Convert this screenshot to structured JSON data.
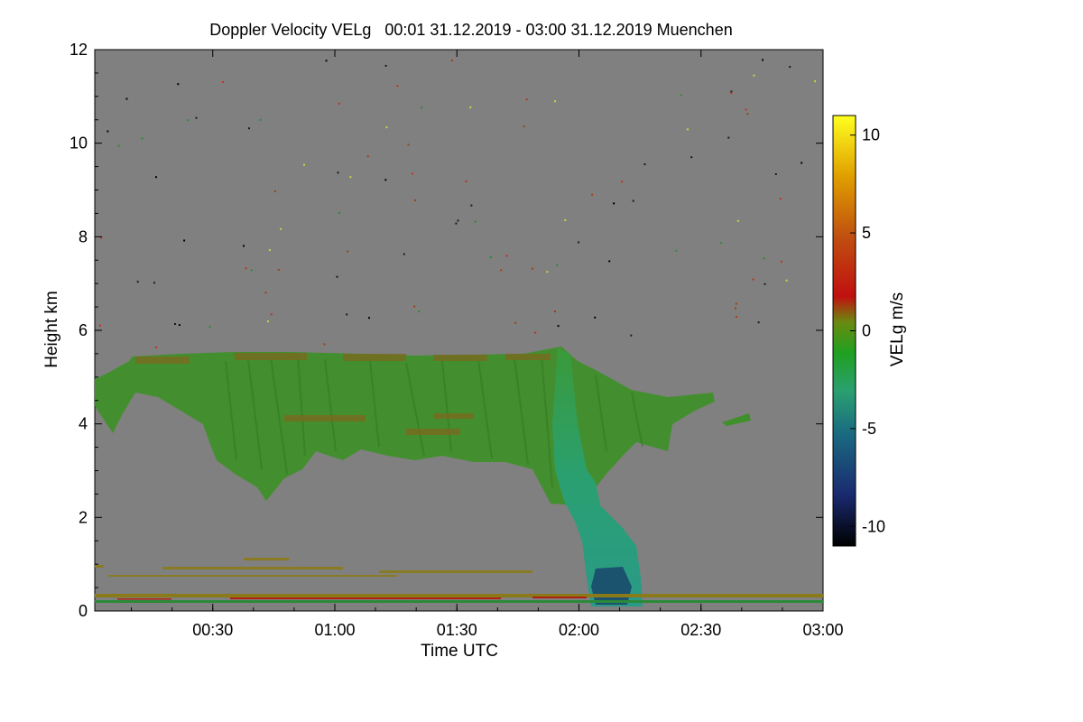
{
  "chart_data": {
    "type": "heatmap",
    "title": "Doppler Velocity VELg   00:01 31.12.2019 - 03:00 31.12.2019 Muenchen",
    "xlabel": "Time UTC",
    "ylabel": "Height km",
    "colorbar_label": "VELg m/s",
    "x_ticks": [
      "00:30",
      "01:00",
      "01:30",
      "02:00",
      "02:30",
      "03:00"
    ],
    "x_tick_hours": [
      0.5,
      1.0,
      1.5,
      2.0,
      2.5,
      3.0
    ],
    "xlim_hours": [
      0.0167,
      3.0
    ],
    "y_ticks": [
      "0",
      "2",
      "4",
      "6",
      "8",
      "10",
      "12"
    ],
    "y_tick_values": [
      0,
      2,
      4,
      6,
      8,
      10,
      12
    ],
    "ylim_km": [
      0,
      12
    ],
    "colorbar_ticks": [
      "10",
      "5",
      "0",
      "-5",
      "-10"
    ],
    "colorbar_tick_values": [
      10,
      5,
      0,
      -5,
      -10
    ],
    "colorbar_range": [
      -11,
      11
    ],
    "features": [
      {
        "name": "mid-level cloud layer",
        "time_start_hours": 0.02,
        "time_end_hours": 2.55,
        "base_km": 2.9,
        "top_km": 5.5,
        "typical_velocity_ms": -1.5
      },
      {
        "name": "precipitation fall streak",
        "time_start_hours": 1.92,
        "time_end_hours": 2.2,
        "base_km": 0.0,
        "top_km": 5.6,
        "typical_velocity_ms": -4.0
      },
      {
        "name": "surface clutter layer",
        "time_start_hours": 0.0,
        "time_end_hours": 3.0,
        "base_km": 0.1,
        "top_km": 0.3,
        "typical_velocity_ms": 1.0
      }
    ],
    "colors": {
      "background": "#808080",
      "cloud": "#3f8f2a",
      "streak": "#2aa06a",
      "core": "#1a4a6a",
      "clutter": "#8a7a1a"
    }
  }
}
